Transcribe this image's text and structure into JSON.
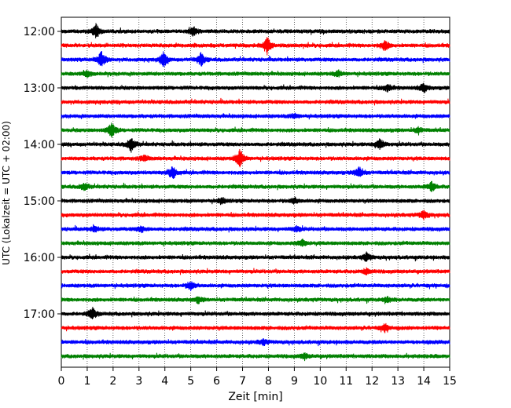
{
  "chart_data": {
    "type": "line",
    "title": "",
    "xlabel": "Zeit  [min]",
    "ylabel": "UTC (Lokalzeit = UTC + 02:00)",
    "xlim": [
      0,
      15
    ],
    "x_ticks": [
      "0",
      "1",
      "2",
      "3",
      "4",
      "5",
      "6",
      "7",
      "8",
      "9",
      "10",
      "11",
      "12",
      "13",
      "14",
      "15"
    ],
    "y_tick_labels": [
      "12:00",
      "13:00",
      "14:00",
      "15:00",
      "16:00",
      "17:00"
    ],
    "grid": "vertical dotted lines at each minute",
    "trace_colors": [
      "#000000",
      "#ff0000",
      "#0000ff",
      "#008000"
    ],
    "traces": [
      {
        "start": "12:00",
        "color": "#000000",
        "events": [
          [
            1.35,
            1.0
          ],
          [
            5.1,
            0.6
          ]
        ]
      },
      {
        "start": "12:15",
        "color": "#ff0000",
        "events": [
          [
            7.95,
            1.2
          ],
          [
            12.5,
            0.7
          ]
        ]
      },
      {
        "start": "12:30",
        "color": "#0000ff",
        "events": [
          [
            1.55,
            1.1
          ],
          [
            3.95,
            1.0
          ],
          [
            5.4,
            0.9
          ]
        ]
      },
      {
        "start": "12:45",
        "color": "#008000",
        "events": [
          [
            1.0,
            0.5
          ],
          [
            10.7,
            0.4
          ]
        ]
      },
      {
        "start": "13:00",
        "color": "#000000",
        "events": [
          [
            12.6,
            0.5
          ],
          [
            14.0,
            0.6
          ]
        ]
      },
      {
        "start": "13:15",
        "color": "#ff0000",
        "events": []
      },
      {
        "start": "13:30",
        "color": "#0000ff",
        "events": [
          [
            9.0,
            0.3
          ]
        ]
      },
      {
        "start": "13:45",
        "color": "#008000",
        "events": [
          [
            1.95,
            1.1
          ],
          [
            13.8,
            0.4
          ]
        ]
      },
      {
        "start": "14:00",
        "color": "#000000",
        "events": [
          [
            2.7,
            1.0
          ],
          [
            12.3,
            0.8
          ]
        ]
      },
      {
        "start": "14:15",
        "color": "#ff0000",
        "events": [
          [
            6.9,
            1.3
          ],
          [
            3.2,
            0.4
          ]
        ]
      },
      {
        "start": "14:30",
        "color": "#0000ff",
        "events": [
          [
            4.3,
            0.9
          ],
          [
            11.5,
            0.8
          ]
        ]
      },
      {
        "start": "14:45",
        "color": "#008000",
        "events": [
          [
            0.9,
            0.5
          ],
          [
            14.3,
            0.7
          ]
        ]
      },
      {
        "start": "15:00",
        "color": "#000000",
        "events": [
          [
            6.2,
            0.4
          ],
          [
            9.0,
            0.4
          ]
        ]
      },
      {
        "start": "15:15",
        "color": "#ff0000",
        "events": [
          [
            14.0,
            0.6
          ]
        ]
      },
      {
        "start": "15:30",
        "color": "#0000ff",
        "events": [
          [
            1.3,
            0.4
          ],
          [
            3.1,
            0.4
          ],
          [
            9.1,
            0.4
          ]
        ]
      },
      {
        "start": "15:45",
        "color": "#008000",
        "events": [
          [
            9.3,
            0.5
          ]
        ]
      },
      {
        "start": "16:00",
        "color": "#000000",
        "events": [
          [
            11.8,
            0.6
          ]
        ]
      },
      {
        "start": "16:15",
        "color": "#ff0000",
        "events": [
          [
            11.8,
            0.4
          ]
        ]
      },
      {
        "start": "16:30",
        "color": "#0000ff",
        "events": [
          [
            5.0,
            0.6
          ]
        ]
      },
      {
        "start": "16:45",
        "color": "#008000",
        "events": [
          [
            5.3,
            0.4
          ],
          [
            12.6,
            0.4
          ]
        ]
      },
      {
        "start": "17:00",
        "color": "#000000",
        "events": [
          [
            1.2,
            0.8
          ]
        ]
      },
      {
        "start": "17:15",
        "color": "#ff0000",
        "events": [
          [
            12.5,
            0.5
          ]
        ]
      },
      {
        "start": "17:30",
        "color": "#0000ff",
        "events": [
          [
            7.8,
            0.4
          ]
        ]
      },
      {
        "start": "17:45",
        "color": "#008000",
        "events": [
          [
            9.4,
            0.4
          ]
        ]
      }
    ]
  }
}
